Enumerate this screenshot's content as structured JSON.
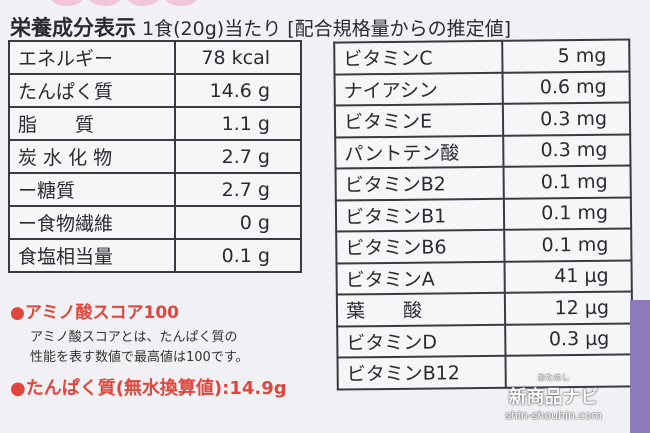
{
  "header": {
    "title": "栄養成分表示",
    "subtitle": "1食(20g)当たり [配合規格量からの推定値]"
  },
  "left_table": [
    {
      "name": "エネルギー",
      "value": "78 kcal"
    },
    {
      "name": "たんぱく質",
      "value": "14.6 g"
    },
    {
      "name": "脂　　質",
      "value": "1.1 g"
    },
    {
      "name": "炭 水 化 物",
      "value": "2.7 g"
    },
    {
      "name": "ー糖質",
      "value": "2.7 g"
    },
    {
      "name": "ー食物繊維",
      "value": "0 g"
    },
    {
      "name": "食塩相当量",
      "value": "0.1 g"
    }
  ],
  "right_table": [
    {
      "name": "ビタミンC",
      "value": "5 mg"
    },
    {
      "name": "ナイアシン",
      "value": "0.6 mg"
    },
    {
      "name": "ビタミンE",
      "value": "0.3 mg"
    },
    {
      "name": "パントテン酸",
      "value": "0.3 mg"
    },
    {
      "name": "ビタミンB2",
      "value": "0.1 mg"
    },
    {
      "name": "ビタミンB1",
      "value": "0.1 mg"
    },
    {
      "name": "ビタミンB6",
      "value": "0.1 mg"
    },
    {
      "name": "ビタミンA",
      "value": "41 μg"
    },
    {
      "name": "葉　　酸",
      "value": "12 μg"
    },
    {
      "name": "ビタミンD",
      "value": "0.3 μg"
    },
    {
      "name": "ビタミンB12",
      "value": ""
    }
  ],
  "notes": {
    "amino_title": "●アミノ酸スコア100",
    "amino_line1": "アミノ酸スコアとは、たんぱく質の",
    "amino_line2": "性能を表す数値で最高値は100です。",
    "protein": "●たんぱく質(無水換算値):14.9g"
  },
  "watermark": {
    "small": "おためし",
    "brand": "新商品ナビ",
    "url": "shin-shouhin.com"
  },
  "colors": {
    "accent_red": "#e0473c",
    "border": "#3a3a42"
  }
}
